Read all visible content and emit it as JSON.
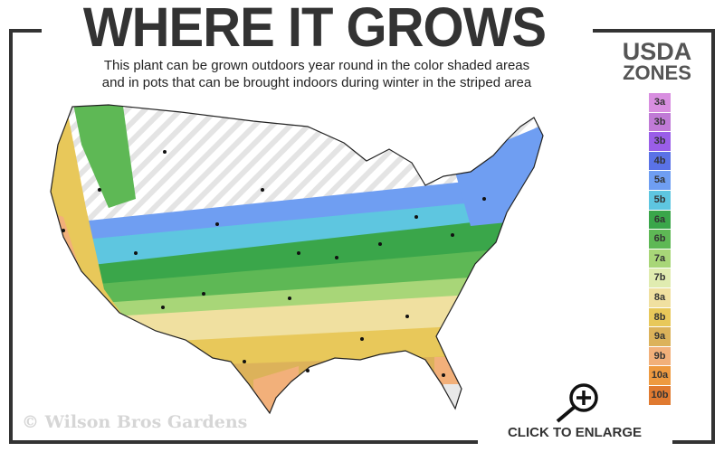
{
  "header": {
    "title": "WHERE IT GROWS",
    "subtitle_line1": "This plant can be grown outdoors year round in the color shaded areas",
    "subtitle_line2": "and in pots that can be brought indoors during winter in the striped area"
  },
  "legend": {
    "title_line1": "USDA",
    "title_line2": "ZONES",
    "zones": [
      {
        "label": "3a",
        "color": "#d88ee0"
      },
      {
        "label": "3b",
        "color": "#c07ad6"
      },
      {
        "label": "3b",
        "color": "#9a5ee8"
      },
      {
        "label": "4b",
        "color": "#5a72e6"
      },
      {
        "label": "5a",
        "color": "#6f9ef2"
      },
      {
        "label": "5b",
        "color": "#5ec6e0"
      },
      {
        "label": "6a",
        "color": "#3aa64a"
      },
      {
        "label": "6b",
        "color": "#5eb855"
      },
      {
        "label": "7a",
        "color": "#a8d678"
      },
      {
        "label": "7b",
        "color": "#e0ecb0"
      },
      {
        "label": "8a",
        "color": "#f0e0a0"
      },
      {
        "label": "8b",
        "color": "#e8c85a"
      },
      {
        "label": "9a",
        "color": "#dcb25a"
      },
      {
        "label": "9b",
        "color": "#f2b07a"
      },
      {
        "label": "10a",
        "color": "#ee9a40"
      },
      {
        "label": "10b",
        "color": "#e07a30"
      }
    ]
  },
  "watermark": "© Wilson Bros Gardens",
  "enlarge": {
    "label": "CLICK TO ENLARGE",
    "icon": "magnifier-plus-icon"
  }
}
